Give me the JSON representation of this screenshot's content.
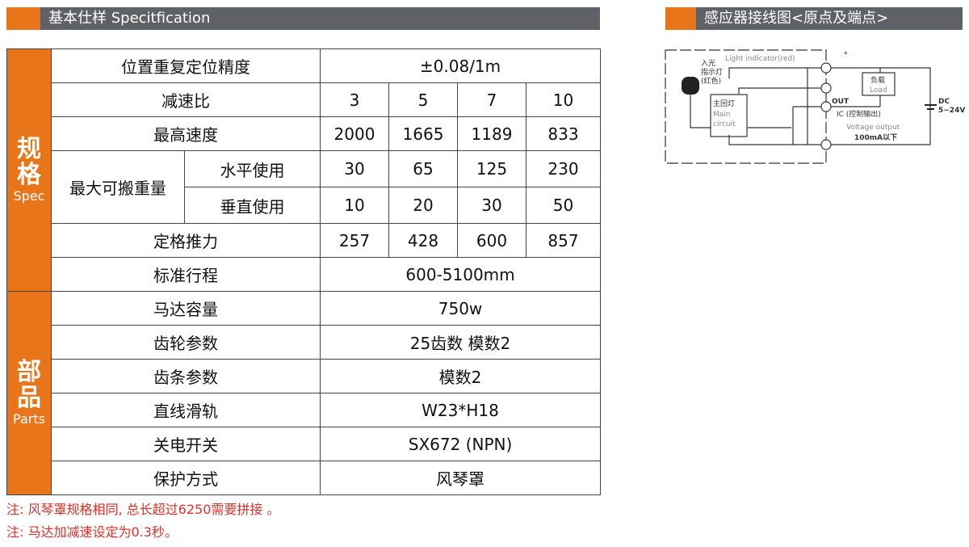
{
  "left_header": {
    "title": "基本仕样 Specitfication"
  },
  "right_header": {
    "title": "感应器接线图<原点及端点>"
  },
  "groups": {
    "spec": {
      "cn": "规格",
      "en": "Spec"
    },
    "parts": {
      "cn": "部品",
      "en": "Parts"
    }
  },
  "rows": {
    "accuracy": {
      "label": "位置重复定位精度",
      "value": "±0.08/1m"
    },
    "ratio": {
      "label": "减速比",
      "values": [
        "3",
        "5",
        "7",
        "10"
      ]
    },
    "speed": {
      "label": "最高速度",
      "values": [
        "2000",
        "1665",
        "1189",
        "833"
      ]
    },
    "load": {
      "label": "最大可搬重量",
      "horizontal": {
        "label": "水平使用",
        "values": [
          "30",
          "65",
          "125",
          "230"
        ]
      },
      "vertical": {
        "label": "垂直使用",
        "values": [
          "10",
          "20",
          "30",
          "50"
        ]
      }
    },
    "thrust": {
      "label": "定格推力",
      "values": [
        "257",
        "428",
        "600",
        "857"
      ]
    },
    "stroke": {
      "label": "标准行程",
      "value": "600-5100mm"
    },
    "motor": {
      "label": "马达容量",
      "value": "750w"
    },
    "gear": {
      "label": "齿轮参数",
      "value": "25齿数  模数2"
    },
    "rack": {
      "label": "齿条参数",
      "value": "模数2"
    },
    "rail": {
      "label": "直线滑轨",
      "value": "W23*H18"
    },
    "switch": {
      "label": "关电开关",
      "value": "SX672 (NPN)"
    },
    "protect": {
      "label": "保护方式",
      "value": "风琴罩"
    }
  },
  "notes": [
    "注: 风琴罩规格相同, 总长超过6250需要拼接 。",
    "注: 马达加减速设定为0.3秒。"
  ],
  "diagram": {
    "light": "Light indicator(red)",
    "lamp1": "入光",
    "lamp2": "指示灯",
    "lamp3": "(红色)",
    "main1": "主回灯",
    "main2": "Main",
    "main3": "circuit",
    "load1": "负载",
    "load2": "Load",
    "out": "OUT",
    "ic": "IC (控制输出)",
    "vo": "Voltage output",
    "ma": "100mA以下",
    "dc": "DC",
    "volt": "5~24V",
    "star": "*"
  },
  "colors": {
    "accent": "#e8751a",
    "header": "#606166",
    "note": "#e0302a"
  }
}
